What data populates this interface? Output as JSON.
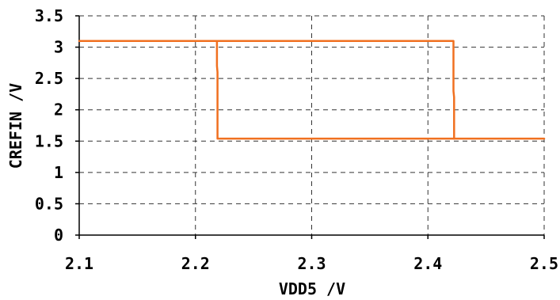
{
  "chart_data": {
    "type": "line",
    "xlabel": "VDD5 /V",
    "ylabel": "CREFIN /V",
    "xlim": [
      2.1,
      2.5
    ],
    "ylim": [
      0,
      3.5
    ],
    "x_ticks": [
      "2.1",
      "2.2",
      "2.3",
      "2.4",
      "2.5"
    ],
    "y_ticks": [
      "0",
      "0.5",
      "1",
      "1.5",
      "2",
      "2.5",
      "3",
      "3.5"
    ],
    "grid": true,
    "line_color": "#f07020",
    "series": [
      {
        "points": [
          [
            2.1,
            3.1
          ],
          [
            2.2185,
            3.1
          ],
          [
            2.2185,
            2.7
          ],
          [
            2.219,
            2.6
          ],
          [
            2.219,
            1.54
          ],
          [
            2.4225,
            1.54
          ],
          [
            2.4225,
            2.2
          ],
          [
            2.422,
            2.3
          ],
          [
            2.422,
            3.1
          ],
          [
            2.219,
            3.1
          ]
        ]
      },
      {
        "points": [
          [
            2.4225,
            1.54
          ],
          [
            2.5,
            1.54
          ]
        ]
      }
    ]
  }
}
